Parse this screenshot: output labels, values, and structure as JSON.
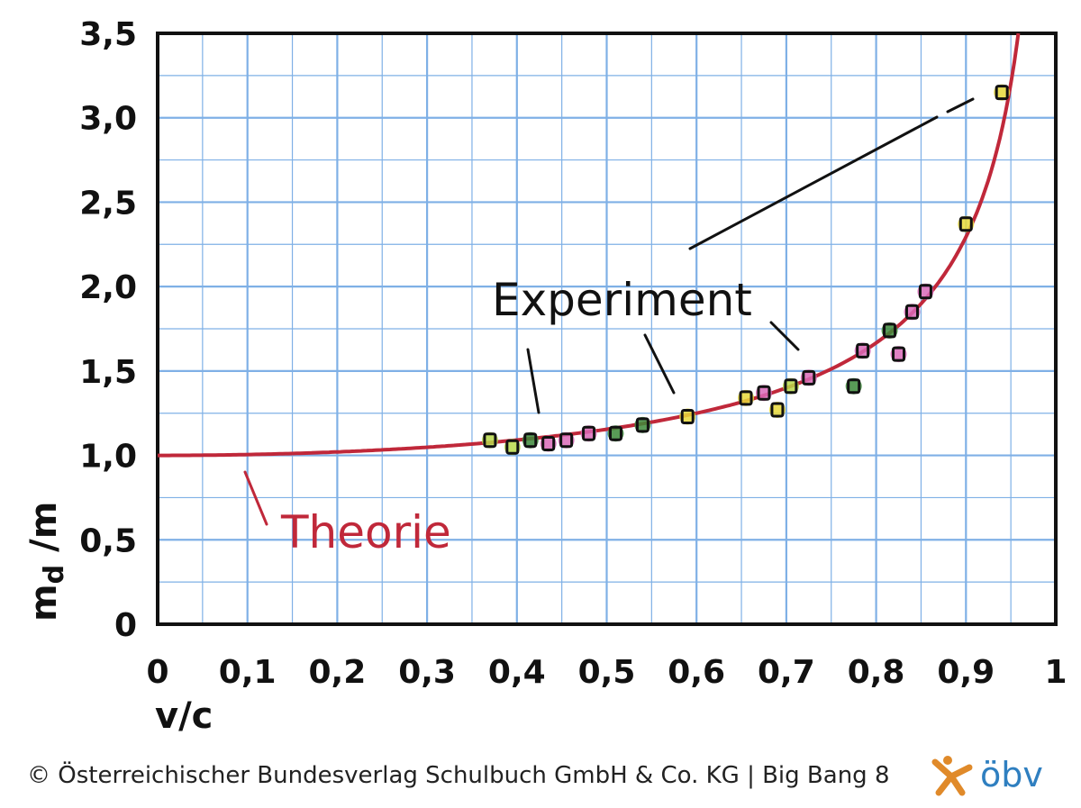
{
  "chart_data": {
    "type": "scatter",
    "title": "",
    "xlabel": "v/c",
    "ylabel": "m_d /m",
    "xlim": [
      0,
      1
    ],
    "ylim": [
      0,
      3.5
    ],
    "grid": true,
    "x_ticks": [
      0,
      0.1,
      0.2,
      0.3,
      0.4,
      0.5,
      0.6,
      0.7,
      0.8,
      0.9,
      1
    ],
    "x_tick_labels": [
      "0",
      "0,1",
      "0,2",
      "0,3",
      "0,4",
      "0,5",
      "0,6",
      "0,7",
      "0,8",
      "0,9",
      "1"
    ],
    "y_ticks": [
      0,
      0.5,
      1.0,
      1.5,
      2.0,
      2.5,
      3.0,
      3.5
    ],
    "y_tick_labels": [
      "0",
      "0,5",
      "1,0",
      "1,5",
      "2,0",
      "2,5",
      "3,0",
      "3,5"
    ],
    "ylabel_main": "m",
    "ylabel_sub": "d",
    "ylabel_rest": " /m",
    "theory": {
      "name": "Theorie",
      "formula": "1/sqrt(1-(v/c)^2)",
      "color": "#c0283a"
    },
    "experiment": {
      "name": "Experiment",
      "points": [
        {
          "x": 0.37,
          "y": 1.09,
          "color": "#b8d94a"
        },
        {
          "x": 0.395,
          "y": 1.05,
          "color": "#b8d94a"
        },
        {
          "x": 0.415,
          "y": 1.09,
          "color": "#3c8a3a"
        },
        {
          "x": 0.435,
          "y": 1.07,
          "color": "#d96ab8"
        },
        {
          "x": 0.455,
          "y": 1.09,
          "color": "#d96ab8"
        },
        {
          "x": 0.48,
          "y": 1.13,
          "color": "#d96ab8"
        },
        {
          "x": 0.51,
          "y": 1.13,
          "color": "#3c8a3a"
        },
        {
          "x": 0.54,
          "y": 1.18,
          "color": "#3c8a3a"
        },
        {
          "x": 0.59,
          "y": 1.23,
          "color": "#e8d93a"
        },
        {
          "x": 0.655,
          "y": 1.34,
          "color": "#e8d93a"
        },
        {
          "x": 0.675,
          "y": 1.37,
          "color": "#d96ab8"
        },
        {
          "x": 0.69,
          "y": 1.27,
          "color": "#e8d93a"
        },
        {
          "x": 0.705,
          "y": 1.41,
          "color": "#b8d94a"
        },
        {
          "x": 0.725,
          "y": 1.46,
          "color": "#d96ab8"
        },
        {
          "x": 0.775,
          "y": 1.41,
          "color": "#3c8a3a"
        },
        {
          "x": 0.785,
          "y": 1.62,
          "color": "#d96ab8"
        },
        {
          "x": 0.815,
          "y": 1.74,
          "color": "#3c8a3a"
        },
        {
          "x": 0.825,
          "y": 1.6,
          "color": "#d96ab8"
        },
        {
          "x": 0.84,
          "y": 1.85,
          "color": "#d96ab8"
        },
        {
          "x": 0.855,
          "y": 1.97,
          "color": "#d96ab8"
        },
        {
          "x": 0.9,
          "y": 2.37,
          "color": "#e8d93a"
        },
        {
          "x": 0.94,
          "y": 3.15,
          "color": "#e8d93a"
        }
      ]
    }
  },
  "footer": "© Österreichischer Bundesverlag Schulbuch GmbH & Co. KG |  Big Bang 8",
  "publisher": "öbv",
  "colors": {
    "grid": "#7fb0e6",
    "theory": "#c0283a",
    "publisher_star": "#e08a2a",
    "publisher_text": "#2f7fc0"
  }
}
